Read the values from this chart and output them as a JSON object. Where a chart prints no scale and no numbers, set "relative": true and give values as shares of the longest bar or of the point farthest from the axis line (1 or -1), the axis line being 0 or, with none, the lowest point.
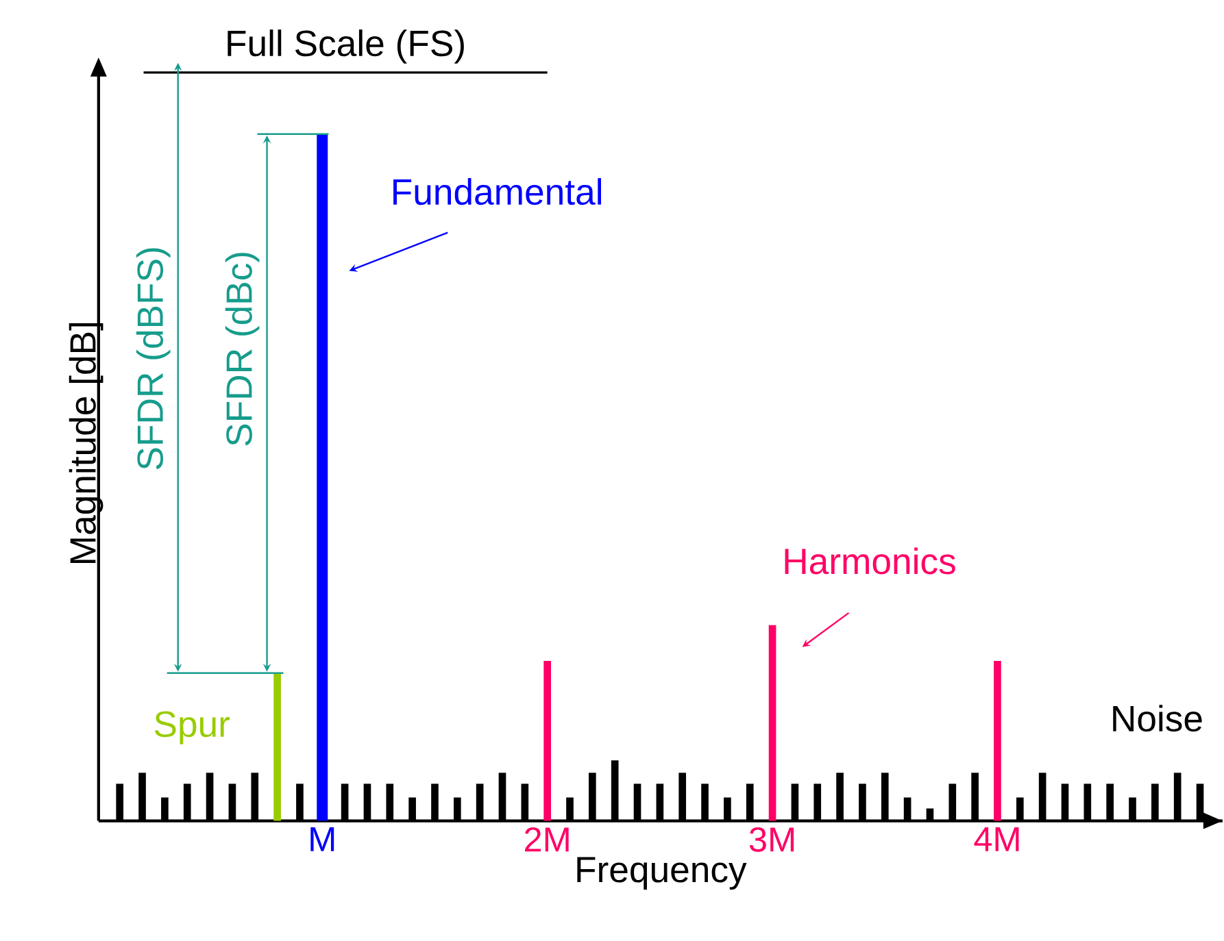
{
  "chart_data": {
    "type": "bar",
    "relative": true,
    "xlabel": "Frequency",
    "ylabel": "Magnitude [dB]",
    "categories": [
      null,
      null,
      null,
      null,
      null,
      null,
      null,
      null,
      null,
      "M",
      null,
      null,
      null,
      null,
      null,
      null,
      null,
      null,
      null,
      "2M",
      null,
      null,
      null,
      null,
      null,
      null,
      null,
      null,
      null,
      "3M",
      null,
      null,
      null,
      null,
      null,
      null,
      null,
      null,
      null,
      "4M",
      null,
      null,
      null,
      null,
      null,
      null,
      null,
      null,
      null
    ],
    "values": [
      0.054,
      0.07,
      0.034,
      0.054,
      0.07,
      0.054,
      0.07,
      0.215,
      0.054,
      1,
      0.054,
      0.054,
      0.054,
      0.034,
      0.054,
      0.034,
      0.054,
      0.07,
      0.054,
      0.233,
      0.034,
      0.07,
      0.088,
      0.054,
      0.054,
      0.07,
      0.054,
      0.034,
      0.054,
      0.285,
      0.054,
      0.054,
      0.07,
      0.054,
      0.07,
      0.034,
      0.018,
      0.054,
      0.07,
      0.233,
      0.034,
      0.07,
      0.054,
      0.054,
      0.054,
      0.034,
      0.054,
      0.07,
      0.054
    ],
    "colors": [
      "#000000",
      "#000000",
      "#000000",
      "#000000",
      "#000000",
      "#000000",
      "#000000",
      "#99cc00",
      "#000000",
      "#0000ff",
      "#000000",
      "#000000",
      "#000000",
      "#000000",
      "#000000",
      "#000000",
      "#000000",
      "#000000",
      "#000000",
      "#ff0066",
      "#000000",
      "#000000",
      "#000000",
      "#000000",
      "#000000",
      "#000000",
      "#000000",
      "#000000",
      "#000000",
      "#ff0066",
      "#000000",
      "#000000",
      "#000000",
      "#000000",
      "#000000",
      "#000000",
      "#000000",
      "#000000",
      "#000000",
      "#ff0066",
      "#000000",
      "#000000",
      "#000000",
      "#000000",
      "#000000",
      "#000000",
      "#000000",
      "#000000",
      "#000000"
    ],
    "ref_lines": [
      {
        "axis": "y",
        "value": 1.09,
        "label": "Full Scale (FS)",
        "color": "#000000"
      }
    ],
    "annotations": [
      "SFDR (dBFS)",
      "SFDR (dBc)",
      "Fundamental",
      "Harmonics",
      "Spur",
      "Noise"
    ],
    "grid": false
  }
}
